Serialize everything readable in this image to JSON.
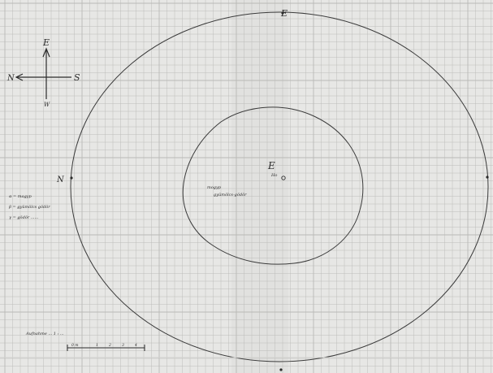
{
  "compass": {
    "north": "N",
    "south": "S",
    "east": "E",
    "west": "W",
    "markers_label": "Compass rose: N (left), S (right), E (up), W (down)"
  },
  "cardinal_labels": {
    "top": "E",
    "left": "N"
  },
  "center": {
    "marker": "E",
    "sub_label": "Ho"
  },
  "annotation": {
    "line1": "mogyp",
    "line2": "gyümölcs-gödör"
  },
  "legend": [
    "α = magyp",
    "β = gyümölcs gödör",
    "γ = gödör ......"
  ],
  "scale": {
    "caption": "Aufnahme ... 1 : ...",
    "ticks": [
      "0 m",
      "1",
      "2",
      "3",
      "4"
    ]
  },
  "colors": {
    "paper": "#e7e7e5",
    "grid": "#b9b9b6",
    "ink": "#3a3a3a"
  }
}
